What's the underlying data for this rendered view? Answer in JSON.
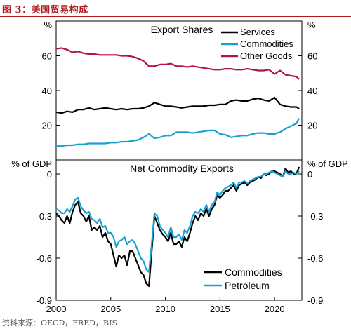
{
  "figure": {
    "title": "图 3：美国贸易构成",
    "source": "资料来源：OECD，FRED，BIS"
  },
  "colors": {
    "services": "#000000",
    "commodities": "#1aa0d0",
    "other_goods": "#b3124e",
    "title_red": "#b5191e"
  },
  "chart_data": [
    {
      "type": "line",
      "title": "Export Shares",
      "ylabel_left": "%",
      "ylabel_right": "%",
      "ylim": [
        0,
        80
      ],
      "xlim": [
        2000,
        2022.5
      ],
      "yticks": [
        20,
        40,
        60
      ],
      "ytick_labels": [
        "20",
        "40",
        "60"
      ],
      "legend": "top-right",
      "series": [
        {
          "name": "Services",
          "color": "#000000",
          "x": [
            2000,
            2000.5,
            2001,
            2001.5,
            2002,
            2002.5,
            2003,
            2003.5,
            2004,
            2004.5,
            2005,
            2005.5,
            2006,
            2006.5,
            2007,
            2007.5,
            2008,
            2008.5,
            2009,
            2009.5,
            2010,
            2010.5,
            2011,
            2011.5,
            2012,
            2012.5,
            2013,
            2013.5,
            2014,
            2014.5,
            2015,
            2015.5,
            2016,
            2016.5,
            2017,
            2017.5,
            2018,
            2018.5,
            2019,
            2019.5,
            2020,
            2020.5,
            2021,
            2021.5,
            2022,
            2022.25
          ],
          "values": [
            27.5,
            27,
            28,
            27.5,
            29,
            29,
            30,
            29,
            29.5,
            30,
            29.5,
            29,
            29.5,
            29,
            29.5,
            29.5,
            30,
            31,
            33,
            32,
            31,
            31,
            30.5,
            30,
            30.5,
            31,
            31,
            31,
            31.5,
            31.5,
            32,
            32,
            34,
            34.5,
            34,
            34,
            35,
            35.5,
            34.5,
            34,
            36,
            32,
            31,
            30.5,
            30.5,
            29.5
          ]
        },
        {
          "name": "Commodities",
          "color": "#1aa0d0",
          "x": [
            2000,
            2000.5,
            2001,
            2001.5,
            2002,
            2002.5,
            2003,
            2003.5,
            2004,
            2004.5,
            2005,
            2005.5,
            2006,
            2006.5,
            2007,
            2007.5,
            2008,
            2008.5,
            2009,
            2009.5,
            2010,
            2010.5,
            2011,
            2011.5,
            2012,
            2012.5,
            2013,
            2013.5,
            2014,
            2014.5,
            2015,
            2015.5,
            2016,
            2016.5,
            2017,
            2017.5,
            2018,
            2018.5,
            2019,
            2019.5,
            2020,
            2020.5,
            2021,
            2021.5,
            2022,
            2022.25
          ],
          "values": [
            8,
            8,
            8.5,
            8.5,
            9,
            9,
            9.5,
            9.5,
            9.5,
            9.5,
            10,
            10,
            10.5,
            10.5,
            11,
            11.5,
            13,
            15,
            12.5,
            13,
            14,
            14,
            16,
            16,
            16,
            15.5,
            16,
            16.5,
            17,
            17,
            15,
            14.5,
            13,
            13.5,
            14,
            14,
            15,
            15.5,
            15.5,
            15,
            15,
            16,
            18,
            19.5,
            21,
            24
          ]
        },
        {
          "name": "Other Goods",
          "color": "#b3124e",
          "x": [
            2000,
            2000.5,
            2001,
            2001.5,
            2002,
            2002.5,
            2003,
            2003.5,
            2004,
            2004.5,
            2005,
            2005.5,
            2006,
            2006.5,
            2007,
            2007.5,
            2008,
            2008.5,
            2009,
            2009.5,
            2010,
            2010.5,
            2011,
            2011.5,
            2012,
            2012.5,
            2013,
            2013.5,
            2014,
            2014.5,
            2015,
            2015.5,
            2016,
            2016.5,
            2017,
            2017.5,
            2018,
            2018.5,
            2019,
            2019.5,
            2020,
            2020.5,
            2021,
            2021.5,
            2022,
            2022.25
          ],
          "values": [
            64,
            64.5,
            63.5,
            62,
            62.5,
            61.5,
            61,
            61,
            60.5,
            60.5,
            60.5,
            60.5,
            60,
            60,
            59.5,
            58.5,
            57,
            54,
            54,
            55,
            55,
            55.5,
            54,
            54,
            53.5,
            54,
            53.5,
            53,
            52.5,
            52,
            52,
            52.5,
            52.5,
            52,
            52,
            52.5,
            52,
            51.5,
            51.5,
            52,
            49.5,
            51.5,
            49,
            48.5,
            48,
            46.5
          ]
        }
      ]
    },
    {
      "type": "line",
      "title": "Net Commodity Exports",
      "ylabel_left": "% of GDP",
      "ylabel_right": "% of GDP",
      "ylim": [
        -0.9,
        0.1
      ],
      "xlim": [
        2000,
        2022.5
      ],
      "yticks": [
        0,
        -0.3,
        -0.6,
        -0.9
      ],
      "ytick_labels": [
        "0",
        "-0.3",
        "-0.6",
        "-0.9"
      ],
      "xticks": [
        2000,
        2005,
        2010,
        2015,
        2020
      ],
      "xtick_labels": [
        "2000",
        "2005",
        "2010",
        "2015",
        "2020"
      ],
      "legend": "bottom-right",
      "series": [
        {
          "name": "Commodities",
          "color": "#000000",
          "x": [
            2000,
            2000.25,
            2000.5,
            2000.75,
            2001,
            2001.25,
            2001.5,
            2001.75,
            2002,
            2002.25,
            2002.5,
            2002.75,
            2003,
            2003.25,
            2003.5,
            2003.75,
            2004,
            2004.25,
            2004.5,
            2004.75,
            2005,
            2005.25,
            2005.5,
            2005.75,
            2006,
            2006.25,
            2006.5,
            2006.75,
            2007,
            2007.25,
            2007.5,
            2007.75,
            2008,
            2008.25,
            2008.5,
            2008.75,
            2009,
            2009.25,
            2009.5,
            2009.75,
            2010,
            2010.25,
            2010.5,
            2010.75,
            2011,
            2011.25,
            2011.5,
            2011.75,
            2012,
            2012.25,
            2012.5,
            2012.75,
            2013,
            2013.25,
            2013.5,
            2013.75,
            2014,
            2014.25,
            2014.5,
            2014.75,
            2015,
            2015.25,
            2015.5,
            2015.75,
            2016,
            2016.25,
            2016.5,
            2016.75,
            2017,
            2017.25,
            2017.5,
            2017.75,
            2018,
            2018.25,
            2018.5,
            2018.75,
            2019,
            2019.25,
            2019.5,
            2019.75,
            2020,
            2020.25,
            2020.5,
            2020.75,
            2021,
            2021.25,
            2021.5,
            2021.75,
            2022,
            2022.25
          ],
          "values": [
            -0.28,
            -0.3,
            -0.33,
            -0.35,
            -0.3,
            -0.35,
            -0.27,
            -0.22,
            -0.2,
            -0.28,
            -0.3,
            -0.34,
            -0.3,
            -0.4,
            -0.38,
            -0.4,
            -0.37,
            -0.45,
            -0.42,
            -0.48,
            -0.5,
            -0.58,
            -0.66,
            -0.58,
            -0.6,
            -0.58,
            -0.65,
            -0.55,
            -0.55,
            -0.6,
            -0.65,
            -0.7,
            -0.72,
            -0.78,
            -0.8,
            -0.55,
            -0.3,
            -0.35,
            -0.4,
            -0.43,
            -0.45,
            -0.48,
            -0.42,
            -0.5,
            -0.5,
            -0.48,
            -0.52,
            -0.45,
            -0.48,
            -0.42,
            -0.35,
            -0.3,
            -0.33,
            -0.28,
            -0.3,
            -0.25,
            -0.3,
            -0.25,
            -0.22,
            -0.15,
            -0.17,
            -0.15,
            -0.12,
            -0.12,
            -0.1,
            -0.08,
            -0.12,
            -0.08,
            -0.07,
            -0.06,
            -0.08,
            -0.06,
            -0.05,
            -0.04,
            -0.02,
            -0.03,
            0,
            -0.01,
            0,
            0.02,
            0.02,
            0.01,
            0,
            -0.02,
            0.04,
            0.01,
            0.02,
            0,
            0,
            0.05
          ]
        },
        {
          "name": "Petroleum",
          "color": "#1aa0d0",
          "x": [
            2000,
            2000.25,
            2000.5,
            2000.75,
            2001,
            2001.25,
            2001.5,
            2001.75,
            2002,
            2002.25,
            2002.5,
            2002.75,
            2003,
            2003.25,
            2003.5,
            2003.75,
            2004,
            2004.25,
            2004.5,
            2004.75,
            2005,
            2005.25,
            2005.5,
            2005.75,
            2006,
            2006.25,
            2006.5,
            2006.75,
            2007,
            2007.25,
            2007.5,
            2007.75,
            2008,
            2008.25,
            2008.5,
            2008.75,
            2009,
            2009.25,
            2009.5,
            2009.75,
            2010,
            2010.25,
            2010.5,
            2010.75,
            2011,
            2011.25,
            2011.5,
            2011.75,
            2012,
            2012.25,
            2012.5,
            2012.75,
            2013,
            2013.25,
            2013.5,
            2013.75,
            2014,
            2014.25,
            2014.5,
            2014.75,
            2015,
            2015.25,
            2015.5,
            2015.75,
            2016,
            2016.25,
            2016.5,
            2016.75,
            2017,
            2017.25,
            2017.5,
            2017.75,
            2018,
            2018.25,
            2018.5,
            2018.75,
            2019,
            2019.25,
            2019.5,
            2019.75,
            2020,
            2020.25,
            2020.5,
            2020.75,
            2021,
            2021.25,
            2021.5,
            2021.75,
            2022,
            2022.25
          ],
          "values": [
            -0.25,
            -0.26,
            -0.28,
            -0.28,
            -0.25,
            -0.27,
            -0.23,
            -0.18,
            -0.17,
            -0.23,
            -0.26,
            -0.28,
            -0.27,
            -0.32,
            -0.33,
            -0.35,
            -0.32,
            -0.38,
            -0.37,
            -0.42,
            -0.42,
            -0.45,
            -0.52,
            -0.48,
            -0.47,
            -0.45,
            -0.5,
            -0.48,
            -0.47,
            -0.5,
            -0.55,
            -0.6,
            -0.62,
            -0.68,
            -0.7,
            -0.5,
            -0.28,
            -0.3,
            -0.37,
            -0.4,
            -0.42,
            -0.45,
            -0.38,
            -0.45,
            -0.45,
            -0.43,
            -0.47,
            -0.4,
            -0.42,
            -0.37,
            -0.3,
            -0.27,
            -0.28,
            -0.25,
            -0.27,
            -0.22,
            -0.27,
            -0.22,
            -0.2,
            -0.13,
            -0.15,
            -0.12,
            -0.1,
            -0.09,
            -0.08,
            -0.06,
            -0.1,
            -0.06,
            -0.06,
            -0.05,
            -0.07,
            -0.05,
            -0.04,
            -0.03,
            -0.02,
            -0.02,
            0,
            0,
            0.01,
            0.02,
            0.01,
            0,
            -0.01,
            -0.02,
            0.02,
            0,
            0,
            0.01,
            0,
            0.02
          ]
        }
      ]
    }
  ]
}
